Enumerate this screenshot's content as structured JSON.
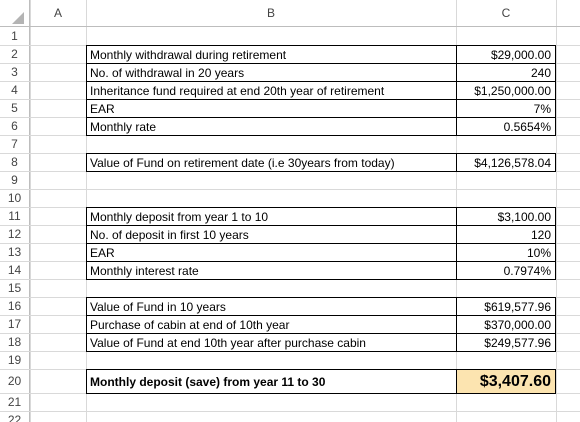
{
  "columns": [
    "A",
    "B",
    "C"
  ],
  "rows": [
    1,
    2,
    3,
    4,
    5,
    6,
    7,
    8,
    9,
    10,
    11,
    12,
    13,
    14,
    15,
    16,
    17,
    18,
    19,
    20,
    21,
    22
  ],
  "cells": [
    {
      "label": "Monthly withdrawal during retirement",
      "value": "$29,000.00"
    },
    {
      "label": "No. of withdrawal in 20 years",
      "value": "240"
    },
    {
      "label": "Inheritance fund required  at end 20th year of retirement",
      "value": "$1,250,000.00"
    },
    {
      "label": "EAR",
      "value": "7%"
    },
    {
      "label": "Monthly rate",
      "value": "0.5654%"
    },
    {
      "label": "Value of Fund on retirement date (i.e 30years from today)",
      "value": "$4,126,578.04"
    },
    {
      "label": "Monthly deposit from year 1 to 10",
      "value": "$3,100.00"
    },
    {
      "label": "No. of deposit in first 10 years",
      "value": "120"
    },
    {
      "label": "EAR",
      "value": "10%"
    },
    {
      "label": "Monthly interest rate",
      "value": "0.7974%"
    },
    {
      "label": "Value of Fund in 10 years",
      "value": "$619,577.96"
    },
    {
      "label": "Purchase of cabin at end of 10th year",
      "value": "$370,000.00"
    },
    {
      "label": "Value of Fund at end 10th year after purchase cabin",
      "value": "$249,577.96"
    },
    {
      "label": "Monthly deposit (save) from year 11 to 30",
      "value": "$3,407.60"
    }
  ]
}
